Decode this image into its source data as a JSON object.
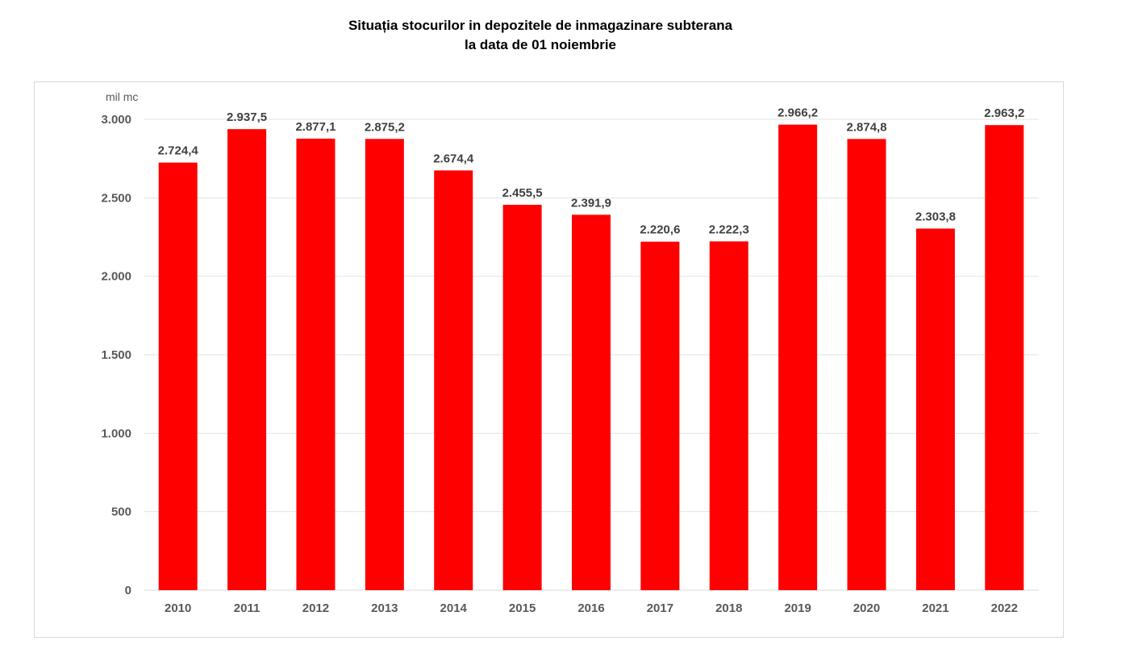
{
  "chart_data": {
    "type": "bar",
    "title": "Situația stocurilor in depozitele de inmagazinare subterana",
    "subtitle": "la data de 01 noiembrie",
    "ylabel": "mil mc",
    "xlabel": "",
    "categories": [
      "2010",
      "2011",
      "2012",
      "2013",
      "2014",
      "2015",
      "2016",
      "2017",
      "2018",
      "2019",
      "2020",
      "2021",
      "2022"
    ],
    "values": [
      2724.4,
      2937.5,
      2877.1,
      2875.2,
      2674.4,
      2455.5,
      2391.9,
      2220.6,
      2222.3,
      2966.2,
      2874.8,
      2303.8,
      2963.2
    ],
    "data_labels": [
      "2.724,4",
      "2.937,5",
      "2.877,1",
      "2.875,2",
      "2.674,4",
      "2.455,5",
      "2.391,9",
      "2.220,6",
      "2.222,3",
      "2.966,2",
      "2.874,8",
      "2.303,8",
      "2.963,2"
    ],
    "ylim": [
      0,
      3000
    ],
    "yticks": [
      0,
      500,
      1000,
      1500,
      2000,
      2500,
      3000
    ],
    "ytick_labels": [
      "0",
      "500",
      "1.000",
      "1.500",
      "2.000",
      "2.500",
      "3.000"
    ],
    "bar_color": "#ff0000",
    "grid": true,
    "legend": "none"
  }
}
